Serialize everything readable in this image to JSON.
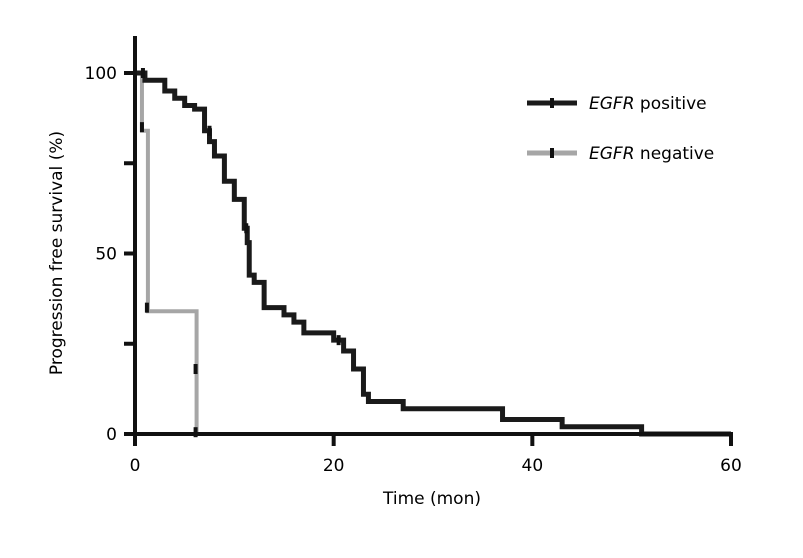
{
  "chart_data": {
    "type": "line",
    "xlabel": "Time (mon)",
    "ylabel": "Progression free survival (%)",
    "xlim": [
      0,
      60
    ],
    "ylim": [
      0,
      100
    ],
    "x_ticks": [
      "0",
      "20",
      "40",
      "60"
    ],
    "y_ticks": [
      "0",
      "50",
      "100"
    ],
    "grid": false,
    "legend_position": "top-right",
    "series": [
      {
        "name_italic": "EGFR",
        "name_rest": " positive",
        "color": "#1a1a1a",
        "step_points": [
          [
            0,
            100
          ],
          [
            1,
            100
          ],
          [
            1,
            98
          ],
          [
            3,
            98
          ],
          [
            3,
            95
          ],
          [
            4,
            95
          ],
          [
            4,
            93
          ],
          [
            5,
            93
          ],
          [
            5,
            91
          ],
          [
            6,
            91
          ],
          [
            6,
            90
          ],
          [
            7,
            90
          ],
          [
            7,
            84
          ],
          [
            7.5,
            84
          ],
          [
            7.5,
            81
          ],
          [
            8,
            81
          ],
          [
            8,
            77
          ],
          [
            9,
            77
          ],
          [
            9,
            70
          ],
          [
            10,
            70
          ],
          [
            10,
            65
          ],
          [
            11,
            65
          ],
          [
            11,
            57
          ],
          [
            11.3,
            57
          ],
          [
            11.3,
            53
          ],
          [
            11.5,
            53
          ],
          [
            11.5,
            44
          ],
          [
            12,
            44
          ],
          [
            12,
            42
          ],
          [
            13,
            42
          ],
          [
            13,
            35
          ],
          [
            15,
            35
          ],
          [
            15,
            33
          ],
          [
            16,
            33
          ],
          [
            16,
            31
          ],
          [
            17,
            31
          ],
          [
            17,
            28
          ],
          [
            20,
            28
          ],
          [
            20,
            26
          ],
          [
            21,
            26
          ],
          [
            21,
            23
          ],
          [
            22,
            23
          ],
          [
            22,
            18
          ],
          [
            23,
            18
          ],
          [
            23,
            11
          ],
          [
            23.5,
            11
          ],
          [
            23.5,
            9
          ],
          [
            27,
            9
          ],
          [
            27,
            7
          ],
          [
            37,
            7
          ],
          [
            37,
            4
          ],
          [
            43,
            4
          ],
          [
            43,
            2
          ],
          [
            51,
            2
          ],
          [
            51,
            0
          ],
          [
            60,
            0
          ]
        ],
        "censor_marks": [
          [
            0.8,
            100
          ],
          [
            7.5,
            84
          ],
          [
            11.2,
            57
          ],
          [
            20.5,
            26
          ]
        ]
      },
      {
        "name_italic": "EGFR",
        "name_rest": " negative",
        "color": "#a6a6a6",
        "step_points": [
          [
            0,
            100
          ],
          [
            0.7,
            100
          ],
          [
            0.7,
            84
          ],
          [
            1.3,
            84
          ],
          [
            1.3,
            34
          ],
          [
            6.2,
            34
          ],
          [
            6.2,
            0
          ]
        ],
        "censor_marks": [
          [
            0.7,
            85
          ],
          [
            1.2,
            35
          ],
          [
            6.1,
            18
          ],
          [
            6.1,
            0.5
          ]
        ]
      }
    ]
  }
}
